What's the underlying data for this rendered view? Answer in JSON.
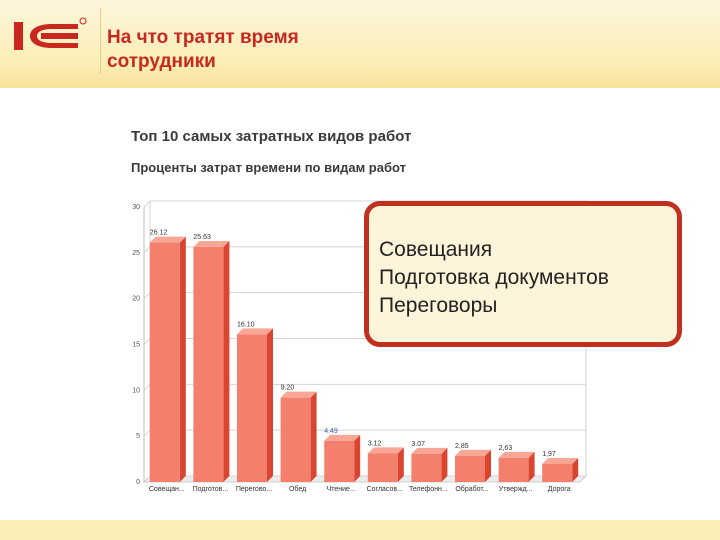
{
  "slide": {
    "title_line1": "На что тратят время",
    "title_line2": "сотрудники",
    "logo_text": "1С"
  },
  "callout": {
    "items": [
      "Совещания",
      "Подготовка документов",
      "Переговоры"
    ]
  },
  "colors": {
    "accent": "#c8281e",
    "bar_front": "#f47f6c",
    "bar_side": "#d9452f",
    "bar_top": "#f8a695",
    "label_highlight": "#3f5fa8"
  },
  "chart_data": {
    "type": "bar",
    "title": "Топ 10 самых затратных видов работ",
    "subtitle": "Проценты затрат времени по видам работ",
    "categories": [
      "Совещан...",
      "Подготов...",
      "Перегово...",
      "Обед",
      "Чтение...",
      "Согласов...",
      "Телефонн...",
      "Обработ...",
      "Утвержд...",
      "Дорога"
    ],
    "value_labels": [
      "26.12",
      "25.63",
      "16.10",
      "9.20",
      "4.49",
      "3.12",
      "3.07",
      "2,85",
      "2,63",
      "1,97"
    ],
    "values": [
      26.12,
      25.63,
      16.1,
      9.2,
      4.49,
      3.12,
      3.07,
      2.85,
      2.63,
      1.97
    ],
    "ylim": [
      0,
      30
    ],
    "yticks": [
      0,
      5,
      10,
      15,
      20,
      25,
      30
    ],
    "grid": true,
    "xlabel": "",
    "ylabel": ""
  }
}
